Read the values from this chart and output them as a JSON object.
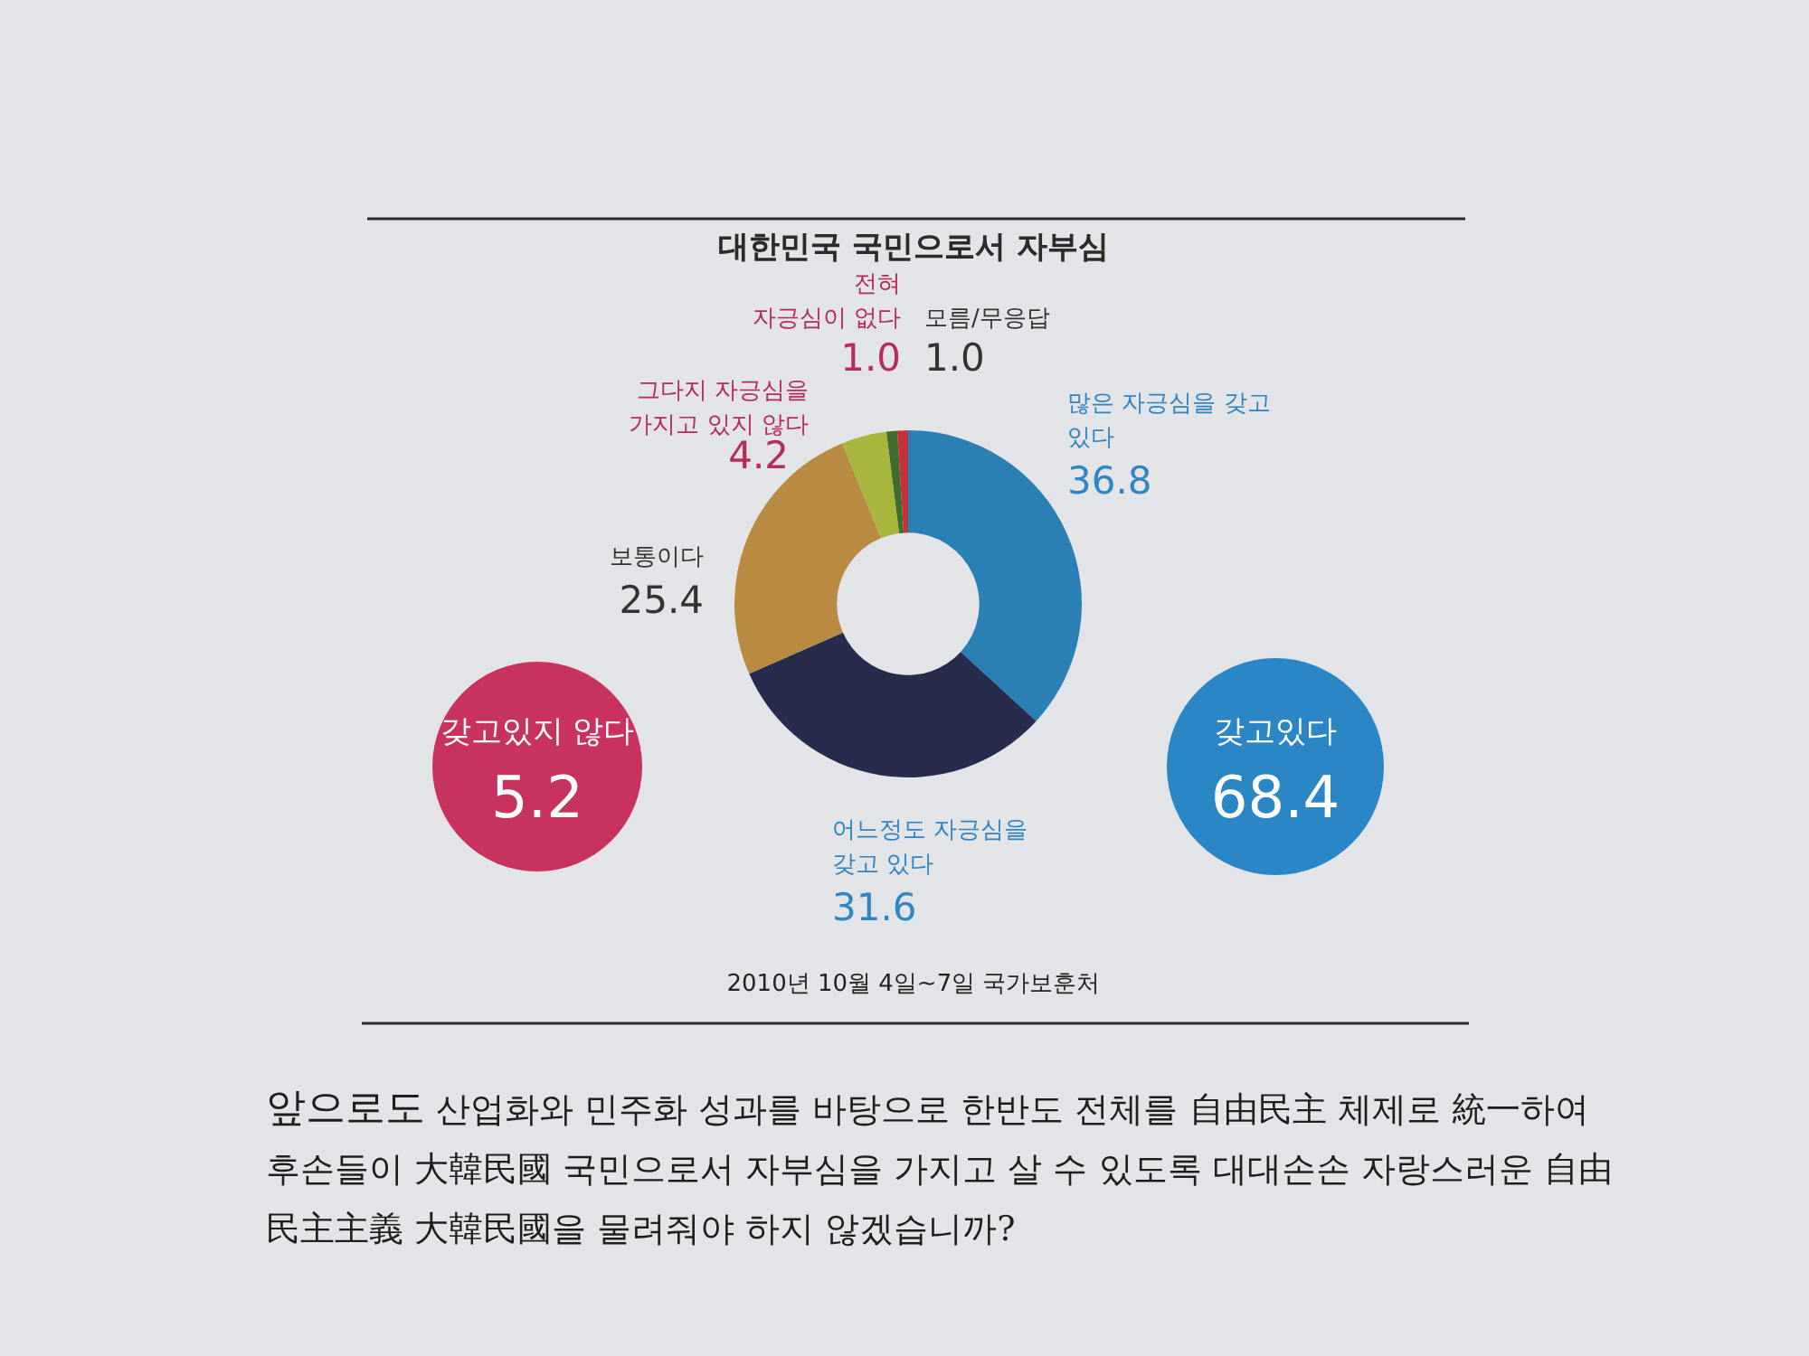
{
  "chart_data": {
    "type": "donut",
    "title": "대한민국 국민으로서 자부심",
    "categories": [
      "많은 자긍심을 갖고 있다",
      "어느정도 자긍심을 갖고 있다",
      "보통이다",
      "그다지 자긍심을 가지고 있지 않다",
      "전혀 자긍심이 없다",
      "모름/무응답"
    ],
    "values": [
      36.8,
      31.6,
      25.4,
      4.2,
      1.0,
      1.0
    ],
    "value_labels": [
      "36.8",
      "31.6",
      "25.4",
      "4.2",
      "1.0",
      "1.0"
    ],
    "colors": [
      "#2a7fb4",
      "#272c4c",
      "#b98b42",
      "#a8b63c",
      "#3f6e2c",
      "#c2333c"
    ],
    "annotations": [
      "갖고있지 않다",
      "5.2",
      "갖고있다",
      "68.4",
      "2010년 10월 4일~7일 국가보훈처",
      "앞으로도 산업화와 민주화 성과를 바탕으로 한반도 전체를 自由民主 체제로 統一하여 후손들이 大韓民國 국민으로서 자부심을 가지고 살 수 있도록 대대손손 자랑스러운 自由民主主義 大韓民國을 물려줘야 하지 않겠습니까?"
    ]
  }
}
